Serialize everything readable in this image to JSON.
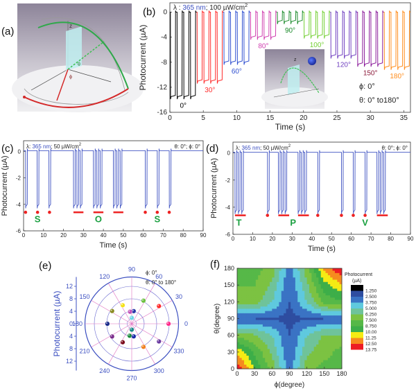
{
  "panels": {
    "a": "(a)",
    "b": "(b)",
    "c": "(c)",
    "d": "(d)",
    "e": "(e)",
    "f": "(f)"
  },
  "illustration": {
    "z_label": "z",
    "theta_label": "θ",
    "phi_label": "ϕ"
  },
  "chart_data": [
    {
      "id": "b",
      "type": "line",
      "condition": {
        "lambda": "λ : ",
        "wavelength": "365 nm",
        "power": "; 100 µW/cm",
        "power_exp": "2"
      },
      "xlabel": "Time (s)",
      "ylabel": "Photocurrent (µA)",
      "xlim": [
        0,
        36
      ],
      "ylim": [
        -16,
        1.5
      ],
      "xticks": [
        0,
        5,
        10,
        15,
        20,
        25,
        30,
        35
      ],
      "yticks": [
        0,
        -4,
        -8,
        -12,
        -16
      ],
      "series": [
        {
          "name": "0°",
          "color": "#000000",
          "start": 0,
          "end": 4,
          "pulses": 4,
          "peak": -13.5
        },
        {
          "name": "30°",
          "color": "#ff2a2a",
          "start": 4,
          "end": 8,
          "pulses": 4,
          "peak": -11.0
        },
        {
          "name": "60°",
          "color": "#3050d0",
          "start": 8,
          "end": 12,
          "pulses": 4,
          "peak": -8.0
        },
        {
          "name": "80°",
          "color": "#d040b0",
          "start": 12,
          "end": 16,
          "pulses": 4,
          "peak": -4.0
        },
        {
          "name": "90°",
          "color": "#1a8a2a",
          "start": 16,
          "end": 20,
          "pulses": 4,
          "peak": -1.5
        },
        {
          "name": "100°",
          "color": "#74d034",
          "start": 20,
          "end": 24,
          "pulses": 4,
          "peak": -3.8
        },
        {
          "name": "120°",
          "color": "#7040c0",
          "start": 24,
          "end": 28,
          "pulses": 4,
          "peak": -7.0
        },
        {
          "name": "150°",
          "color": "#8a1a9a",
          "start": 28,
          "end": 32,
          "pulses": 4,
          "peak": -8.3,
          "label_color": "#8b1a3a"
        },
        {
          "name": "180°",
          "color": "#ff8c1a",
          "start": 32,
          "end": 36,
          "pulses": 4,
          "peak": -8.8
        }
      ],
      "annotations": {
        "phi": "ϕ: 0°",
        "theta": "θ: 0° to180°",
        "inset_z": "z"
      }
    },
    {
      "id": "c",
      "type": "line",
      "condition": {
        "lambda": "λ: ",
        "wavelength": "365 nm",
        "power": "; 50 µW/cm",
        "power_exp": "2"
      },
      "angles": "θ: 0°; ϕ: 0°",
      "xlabel": "Time (s)",
      "ylabel": "Photocurrent (µA)",
      "xlim": [
        0,
        90
      ],
      "ylim": [
        -6,
        0.8
      ],
      "xticks": [
        0,
        10,
        20,
        30,
        40,
        50,
        60,
        70,
        80,
        90
      ],
      "yticks": [
        0,
        -2,
        -4,
        -6
      ],
      "baseline": 0.05,
      "peak": -4.2,
      "pulse_starts": [
        1,
        6.8,
        12.7,
        25,
        26.7,
        28.4,
        35,
        36.7,
        38.4,
        45,
        46.7,
        48.4,
        61,
        67,
        73
      ],
      "morse_dots": [
        1,
        7,
        13,
        61,
        67,
        73
      ],
      "morse_dashes": [
        [
          25,
          30
        ],
        [
          35,
          40
        ],
        [
          45,
          50
        ]
      ],
      "letters": [
        {
          "text": "S",
          "t": 7
        },
        {
          "text": "O",
          "t": 37.5
        },
        {
          "text": "S",
          "t": 67
        }
      ]
    },
    {
      "id": "d",
      "type": "line",
      "condition": {
        "lambda": "λ: ",
        "wavelength": "365 nm",
        "power": "; 50 µW/cm",
        "power_exp": "2"
      },
      "angles": "θ: 0°; ϕ: 0°",
      "xlabel": "Time (s)",
      "ylabel": "Photocurrent (µA)",
      "xlim": [
        0,
        90
      ],
      "ylim": [
        -6,
        0.8
      ],
      "xticks": [
        0,
        10,
        20,
        30,
        40,
        50,
        60,
        70,
        80,
        90
      ],
      "yticks": [
        0,
        -2,
        -4,
        -6
      ],
      "baseline": 0.05,
      "peak": -4.4,
      "pulse_starts": [
        1,
        2.7,
        4.4,
        17.5,
        23,
        24.7,
        26.4,
        33,
        34.7,
        36.4,
        43,
        55,
        61,
        67,
        73,
        74.7,
        76.4
      ],
      "morse_dots": [
        17.5,
        43,
        55,
        61,
        67
      ],
      "morse_dashes": [
        [
          1,
          6.5
        ],
        [
          23,
          28.5
        ],
        [
          33,
          38.5
        ],
        [
          73,
          78.5
        ]
      ],
      "letters": [
        {
          "text": "T",
          "t": 3
        },
        {
          "text": "P",
          "t": 30.5
        },
        {
          "text": "V",
          "t": 67
        }
      ]
    },
    {
      "id": "e",
      "type": "scatter",
      "subtype": "polar",
      "ylabel": "Photocurrent (µA)",
      "radial_max": 15,
      "radial_ticks": [
        12,
        8,
        4,
        0,
        4,
        8,
        12
      ],
      "angle_ticks": [
        0,
        30,
        60,
        90,
        120,
        150,
        180,
        210,
        240,
        270,
        300,
        330
      ],
      "annotations": {
        "phi": "ϕ: 0°",
        "theta": "θ: 0° to 180°"
      },
      "points": [
        {
          "angle": 0,
          "r": 11.8,
          "color": "#ff2a8a"
        },
        {
          "angle": 33,
          "r": 10.4,
          "color": "#ff2a2a"
        },
        {
          "angle": 63,
          "r": 8.3,
          "color": "#6cc040"
        },
        {
          "angle": 81,
          "r": 4.1,
          "color": "#2838a8"
        },
        {
          "angle": 90,
          "r": 1.9,
          "color": "#6fd6e8"
        },
        {
          "angle": 98,
          "r": 3.9,
          "color": "#c050b8"
        },
        {
          "angle": 116,
          "r": 6.6,
          "color": "#f4e218"
        },
        {
          "angle": 147,
          "r": 7.5,
          "color": "#8a8a20"
        },
        {
          "angle": 180,
          "r": 7.8,
          "color": "#1a2a8a"
        },
        {
          "angle": 213,
          "r": 7.5,
          "color": "#7a2a8a"
        },
        {
          "angle": 244,
          "r": 6.6,
          "color": "#7a0a1a"
        },
        {
          "angle": 260,
          "r": 3.9,
          "color": "#1a8a3a"
        },
        {
          "angle": 270,
          "r": 1.9,
          "color": "#1a8a8a"
        },
        {
          "angle": 279,
          "r": 4.1,
          "color": "#1a2aa8"
        },
        {
          "angle": 297,
          "r": 8.3,
          "color": "#f08020"
        },
        {
          "angle": 327,
          "r": 10.4,
          "color": "#6a3aa0"
        }
      ]
    },
    {
      "id": "f",
      "type": "heatmap",
      "xlabel": "ϕ(degree)",
      "ylabel": "θ(degree)",
      "x": [
        0,
        30,
        60,
        90,
        120,
        150,
        180
      ],
      "y": [
        0,
        30,
        60,
        90,
        120,
        150,
        180
      ],
      "z": [
        [
          13.5,
          10.0,
          7.0,
          3.0,
          7.0,
          8.0,
          8.0
        ],
        [
          11.0,
          8.5,
          6.0,
          2.5,
          6.0,
          7.0,
          8.0
        ],
        [
          7.0,
          6.5,
          5.0,
          2.5,
          5.0,
          6.5,
          6.5
        ],
        [
          2.5,
          2.5,
          2.4,
          2.0,
          2.4,
          2.5,
          2.5
        ],
        [
          7.0,
          7.0,
          5.0,
          2.5,
          5.0,
          8.0,
          8.5
        ],
        [
          7.5,
          7.5,
          6.0,
          2.5,
          6.0,
          9.5,
          11.0
        ],
        [
          8.0,
          8.0,
          7.0,
          3.0,
          7.0,
          11.5,
          13.8
        ]
      ],
      "colorbar": {
        "title": "Photocurrent",
        "unit": "(µA)",
        "labels": [
          "1.250",
          "2.500",
          "3.750",
          "5.000",
          "6.250",
          "7.500",
          "8.750",
          "10.00",
          "11.25",
          "12.50",
          "13.75"
        ],
        "colors": [
          "#000000",
          "#2e4da0",
          "#3a73c4",
          "#5fc9de",
          "#6fc39a",
          "#7cc242",
          "#56b848",
          "#3dae49",
          "#f5eb14",
          "#f68b1f",
          "#ed1c24"
        ]
      }
    }
  ]
}
